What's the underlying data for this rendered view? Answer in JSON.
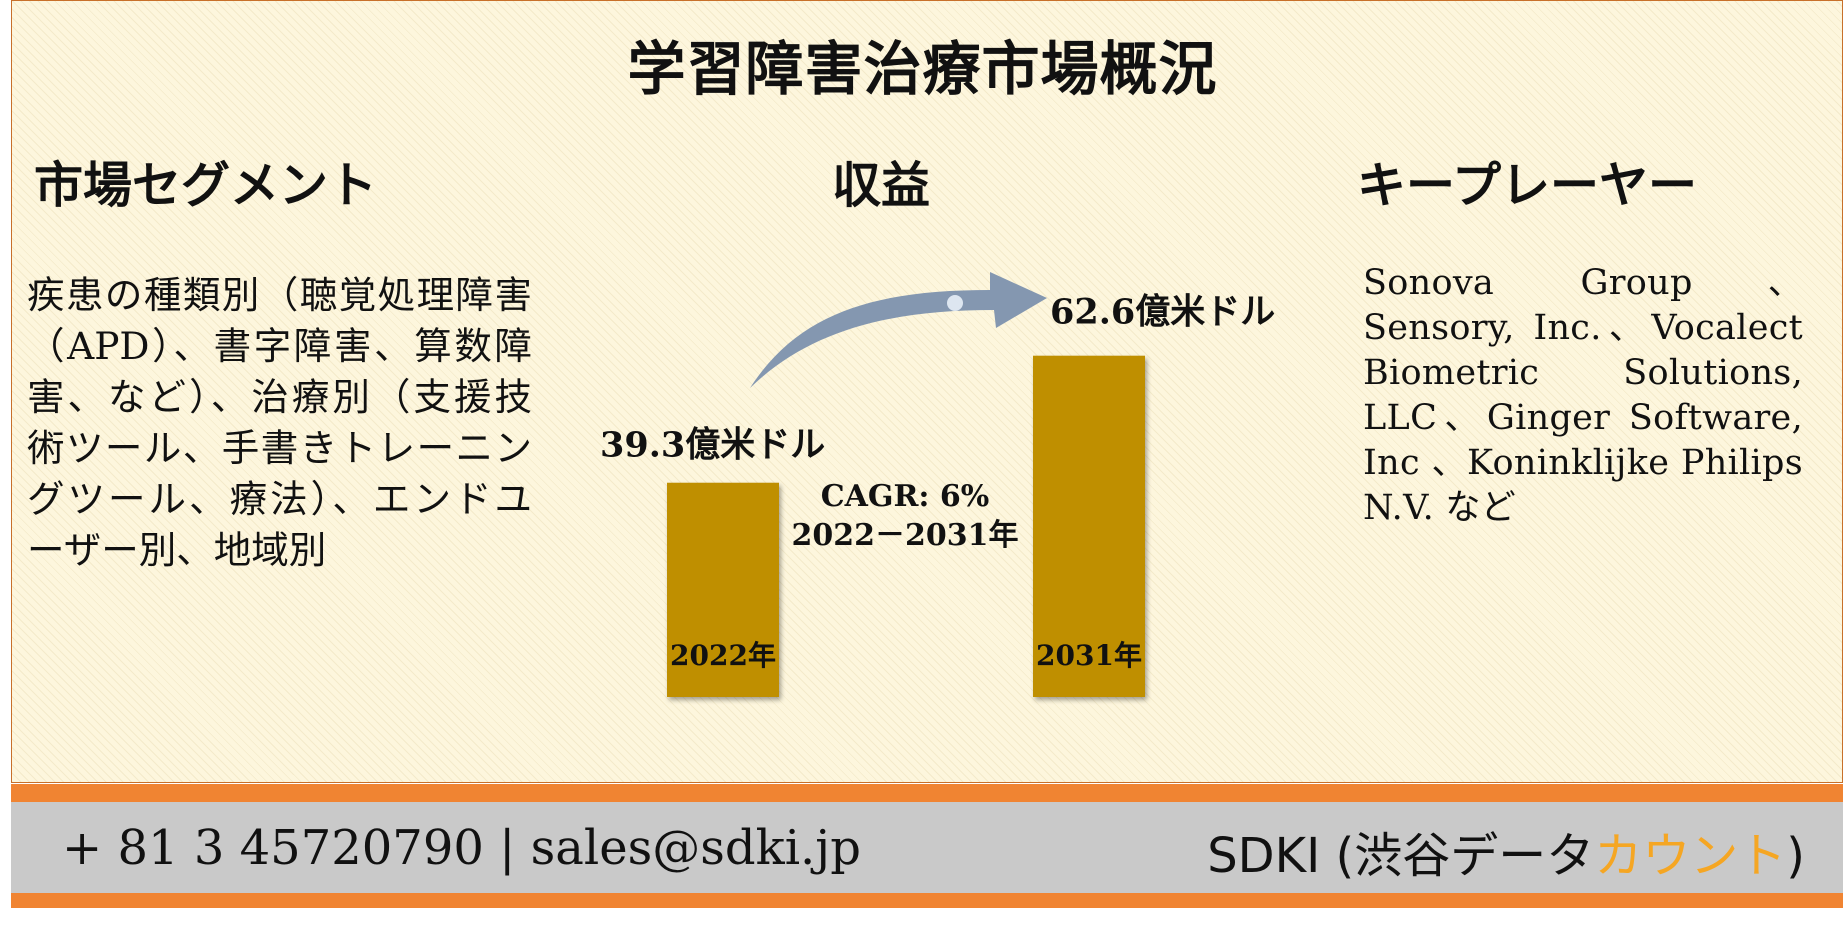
{
  "title": "学習障害治療市場概況",
  "segment": {
    "heading": "市場セグメント",
    "text": "疾患の種類別（聴覚処理障害（APD）、書字障害、算数障害、など）、治療別（支援技術ツール、手書きトレーニングツール、療法）、エンドユーザー別、地域別"
  },
  "revenue": {
    "heading": "収益"
  },
  "key_players": {
    "heading": "キープレーヤー",
    "text": "Sonova Group、Sensory, Inc.、Vocalect Biometric Solutions, LLC、Ginger Software, Inc 、Koninklijke Philips N.V. など"
  },
  "chart_data": {
    "type": "bar",
    "categories": [
      "2022年",
      "2031年"
    ],
    "values": [
      39.3,
      62.6
    ],
    "value_labels": [
      "39.3億米ドル",
      "62.6億米ドル"
    ],
    "annotation": {
      "line1": "CAGR: 6%",
      "line2": "2022－2031年"
    },
    "bar_color": "#bf8f00",
    "arrow_color": "#8497b0"
  },
  "footer": {
    "contact": "+ 81 3 45720790 | sales@sdki.jp",
    "brand_prefix": "SDKI (渋谷データ",
    "brand_accent": "カウント",
    "brand_suffix": ")",
    "accent_color": "#f5a623",
    "band_color": "#f08432",
    "bg_color": "#c9c9c9"
  }
}
